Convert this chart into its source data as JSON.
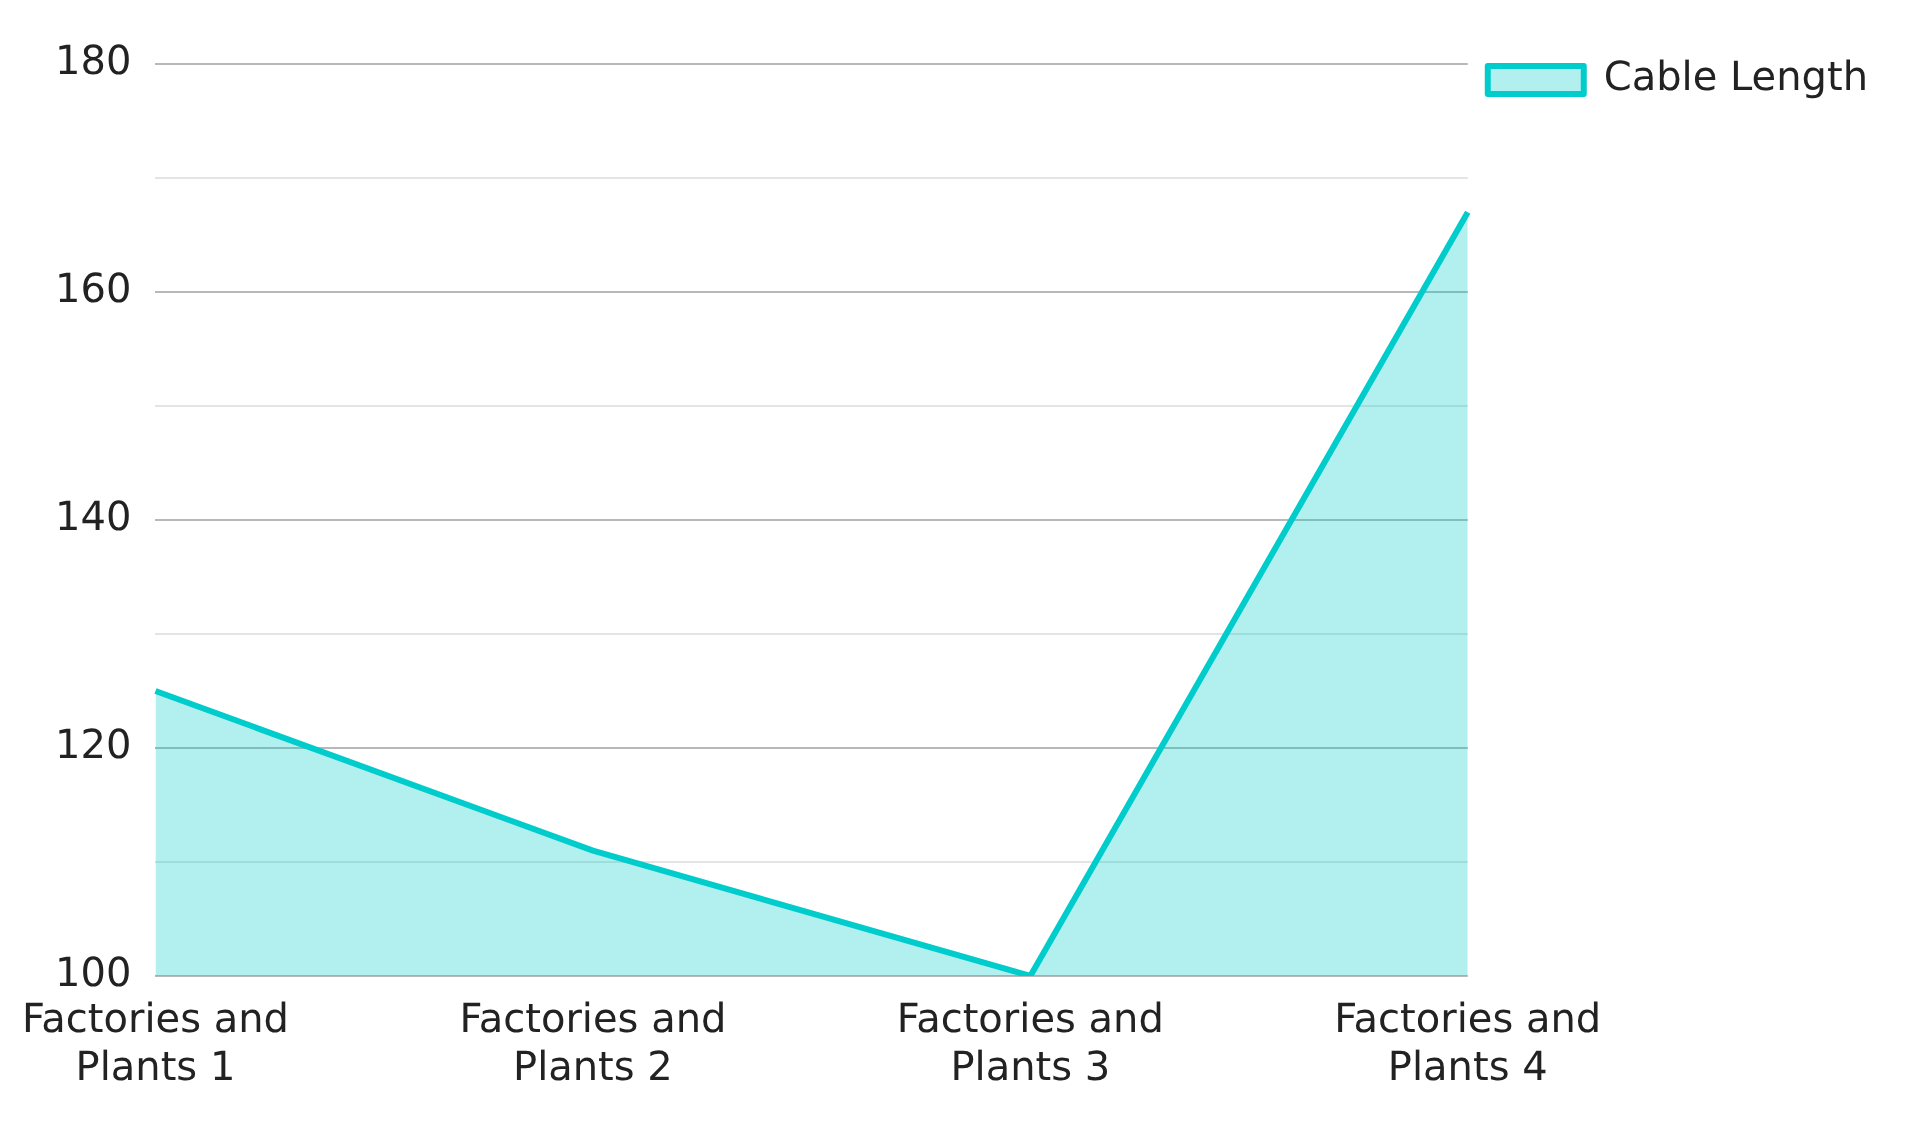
{
  "chart_data": {
    "type": "area",
    "categories": [
      "Factories and Plants 1",
      "Factories and Plants 2",
      "Factories and Plants 3",
      "Factories and Plants 4"
    ],
    "series": [
      {
        "name": "Cable Length",
        "color": "#00cccc",
        "values": [
          125,
          111,
          100,
          167
        ]
      }
    ],
    "ylim": [
      100,
      180
    ],
    "yticks": [
      100,
      {
        "value": 110,
        "label": null
      },
      120,
      {
        "value": 130,
        "label": null
      },
      140,
      {
        "value": 150,
        "label": null
      },
      160,
      {
        "value": 170,
        "label": null
      },
      180
    ],
    "grid": "y",
    "legend": "top right"
  }
}
